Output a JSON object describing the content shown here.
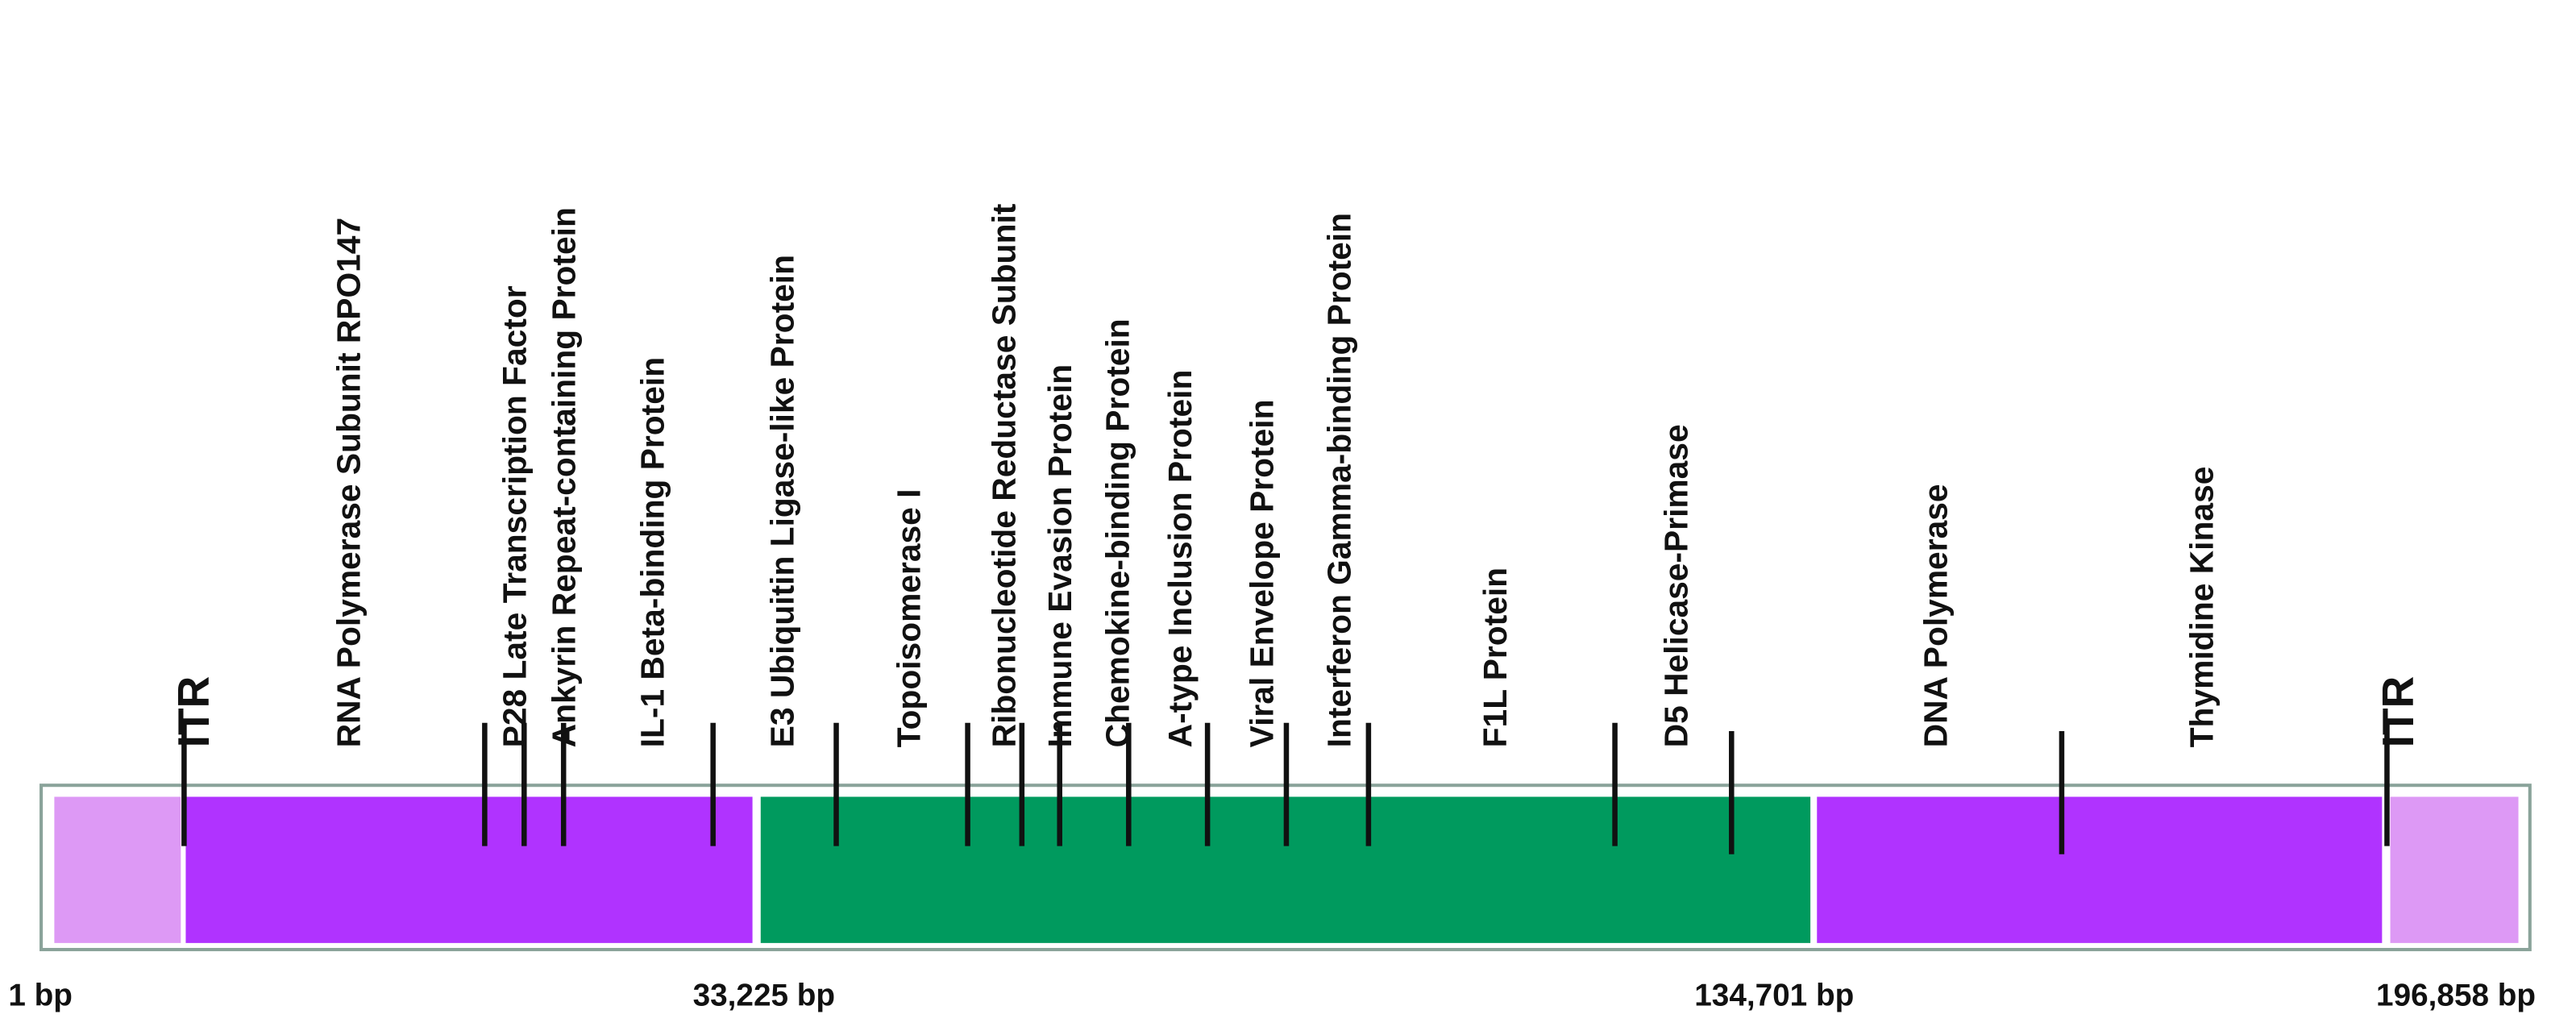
{
  "itr_labels": [
    "ITR",
    "ITR"
  ],
  "genes": [
    "RNA Polymerase Subunit RPO147",
    "P28 Late Transcription Factor",
    "Ankyrin Repeat-containing Protein",
    "IL-1 Beta-binding Protein",
    "E3 Ubiquitin Ligase-like Protein",
    "Topoisomerase I",
    "Ribonucleotide  Reductase Subunit",
    "Immune Evasion Protein",
    "Chemokine-binding Protein",
    "A-type Inclusion Protein",
    "Viral Envelope Protein",
    "Interferon Gamma-binding Protein",
    "F1L Protein",
    "D5 Helicase-Primase",
    "DNA Polymerase",
    "Thymidine Kinase"
  ],
  "coordinates": [
    "1 bp",
    "33,225 bp",
    "134,701 bp",
    "196,858 bp"
  ]
}
